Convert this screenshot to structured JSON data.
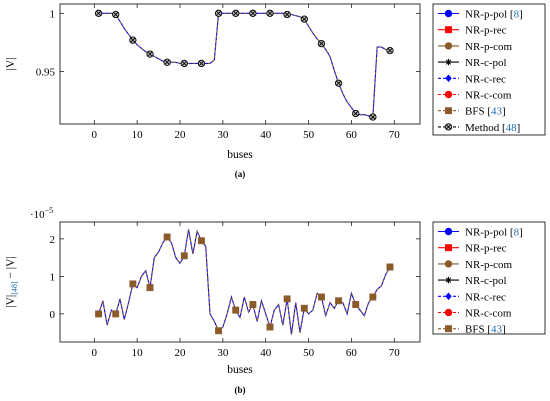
{
  "chart_data": [
    {
      "type": "line",
      "panel_label": "(a)",
      "xlabel": "buses",
      "ylabel": "|V|",
      "xlim": [
        -8,
        76
      ],
      "ylim": [
        0.905,
        1.008
      ],
      "x_ticks": [
        "0",
        "10",
        "20",
        "30",
        "40",
        "50",
        "60",
        "70"
      ],
      "x_tick_values": [
        0,
        10,
        20,
        30,
        40,
        50,
        60,
        70
      ],
      "y_ticks": [
        "0.95",
        "1"
      ],
      "y_tick_values": [
        0.95,
        1.0
      ],
      "grid": false,
      "legend_position": "outside-right",
      "x": [
        1,
        2,
        3,
        4,
        5,
        6,
        7,
        8,
        9,
        10,
        11,
        12,
        13,
        14,
        15,
        16,
        17,
        18,
        19,
        20,
        21,
        22,
        23,
        24,
        25,
        26,
        27,
        28,
        29,
        30,
        31,
        32,
        33,
        34,
        35,
        36,
        37,
        38,
        39,
        40,
        41,
        42,
        43,
        44,
        45,
        46,
        47,
        48,
        49,
        50,
        51,
        52,
        53,
        54,
        55,
        56,
        57,
        58,
        59,
        60,
        61,
        62,
        63,
        64,
        65,
        66,
        67,
        68,
        69
      ],
      "values": [
        1.0,
        1.0,
        1.0,
        1.0,
        0.999,
        0.993,
        0.987,
        0.982,
        0.977,
        0.973,
        0.97,
        0.967,
        0.965,
        0.963,
        0.961,
        0.959,
        0.958,
        0.958,
        0.958,
        0.957,
        0.957,
        0.957,
        0.957,
        0.957,
        0.957,
        0.957,
        0.957,
        0.96,
        1.0,
        1.0,
        1.0,
        1.0,
        1.0,
        1.0,
        1.0,
        1.0,
        1.0,
        1.0,
        1.0,
        1.0,
        1.0,
        1.0,
        1.0,
        1.0,
        0.999,
        0.999,
        0.998,
        0.997,
        0.995,
        0.989,
        0.983,
        0.978,
        0.974,
        0.969,
        0.963,
        0.951,
        0.94,
        0.931,
        0.924,
        0.919,
        0.914,
        0.913,
        0.913,
        0.912,
        0.911,
        0.971,
        0.971,
        0.969,
        0.968
      ],
      "marker_x": [
        1,
        5,
        9,
        13,
        17,
        21,
        25,
        29,
        33,
        37,
        41,
        45,
        49,
        53,
        57,
        61,
        65,
        69
      ],
      "legend": [
        {
          "name_text": "NR-p-pol",
          "ref": "8",
          "color": "#0000ff",
          "marker": "circle",
          "dash": "solid"
        },
        {
          "name_text": "NR-p-rec",
          "ref": "",
          "color": "#ff0000",
          "marker": "square",
          "dash": "solid"
        },
        {
          "name_text": "NR-p-com",
          "ref": "",
          "color": "#8b5a2b",
          "marker": "circle",
          "dash": "solid"
        },
        {
          "name_text": "NR-c-pol",
          "ref": "",
          "color": "#000000",
          "marker": "star",
          "dash": "solid"
        },
        {
          "name_text": "NR-c-rec",
          "ref": "",
          "color": "#0000ff",
          "marker": "diamond",
          "dash": "dashed"
        },
        {
          "name_text": "NR-c-com",
          "ref": "",
          "color": "#ff0000",
          "marker": "circle",
          "dash": "dashed"
        },
        {
          "name_text": "BFS",
          "ref": "43",
          "color": "#8b5a2b",
          "marker": "square",
          "dash": "dashed"
        },
        {
          "name_text": "Method",
          "ref": "48",
          "color": "#000000",
          "marker": "otimes",
          "dash": "dashed"
        }
      ]
    },
    {
      "type": "line",
      "panel_label": "(b)",
      "xlabel": "buses",
      "ylabel_parts": [
        "|V|",
        "[48]",
        " − |V|"
      ],
      "scale_label": "·10",
      "scale_exp": "−5",
      "xlim": [
        -8,
        76
      ],
      "ylim": [
        -0.75,
        2.45
      ],
      "x_ticks": [
        "0",
        "10",
        "20",
        "30",
        "40",
        "50",
        "60",
        "70"
      ],
      "x_tick_values": [
        0,
        10,
        20,
        30,
        40,
        50,
        60,
        70
      ],
      "y_ticks": [
        "0",
        "1",
        "2"
      ],
      "y_tick_values": [
        0,
        1,
        2
      ],
      "grid": false,
      "legend_position": "outside-right",
      "x": [
        1,
        2,
        3,
        4,
        5,
        6,
        7,
        8,
        9,
        10,
        11,
        12,
        13,
        14,
        15,
        16,
        17,
        18,
        19,
        20,
        21,
        22,
        23,
        24,
        25,
        26,
        27,
        28,
        29,
        30,
        31,
        32,
        33,
        34,
        35,
        36,
        37,
        38,
        39,
        40,
        41,
        42,
        43,
        44,
        45,
        46,
        47,
        48,
        49,
        50,
        51,
        52,
        53,
        54,
        55,
        56,
        57,
        58,
        59,
        60,
        61,
        62,
        63,
        64,
        65,
        66,
        67,
        68,
        69
      ],
      "values": [
        0.0,
        0.35,
        -0.3,
        0.1,
        0.0,
        0.4,
        -0.15,
        0.3,
        0.8,
        0.7,
        1.0,
        1.15,
        0.7,
        1.5,
        1.65,
        1.9,
        2.05,
        1.9,
        1.5,
        1.35,
        1.55,
        2.25,
        1.6,
        2.2,
        1.95,
        1.8,
        0.0,
        -0.2,
        -0.45,
        -0.35,
        0.0,
        0.45,
        0.1,
        -0.1,
        0.45,
        0.05,
        0.25,
        -0.2,
        0.35,
        0.0,
        -0.35,
        0.1,
        0.25,
        -0.3,
        0.4,
        -0.55,
        0.3,
        -0.5,
        0.15,
        0.0,
        0.1,
        0.55,
        0.45,
        -0.05,
        0.3,
        0.15,
        0.35,
        0.3,
        0.0,
        0.55,
        0.25,
        0.1,
        -0.05,
        0.3,
        0.45,
        0.65,
        0.75,
        1.05,
        1.25
      ],
      "marker_x": [
        1,
        5,
        9,
        13,
        17,
        21,
        25,
        29,
        33,
        37,
        41,
        45,
        49,
        53,
        57,
        61,
        65,
        69
      ],
      "legend": [
        {
          "name_text": "NR-p-pol",
          "ref": "8",
          "color": "#0000ff",
          "marker": "circle",
          "dash": "solid"
        },
        {
          "name_text": "NR-p-rec",
          "ref": "",
          "color": "#ff0000",
          "marker": "square",
          "dash": "solid"
        },
        {
          "name_text": "NR-p-com",
          "ref": "",
          "color": "#8b5a2b",
          "marker": "circle",
          "dash": "solid"
        },
        {
          "name_text": "NR-c-pol",
          "ref": "",
          "color": "#000000",
          "marker": "star",
          "dash": "solid"
        },
        {
          "name_text": "NR-c-rec",
          "ref": "",
          "color": "#0000ff",
          "marker": "diamond",
          "dash": "dashed"
        },
        {
          "name_text": "NR-c-com",
          "ref": "",
          "color": "#ff0000",
          "marker": "circle",
          "dash": "dashed"
        },
        {
          "name_text": "BFS",
          "ref": "43",
          "color": "#8b5a2b",
          "marker": "square",
          "dash": "dashed"
        }
      ]
    }
  ]
}
